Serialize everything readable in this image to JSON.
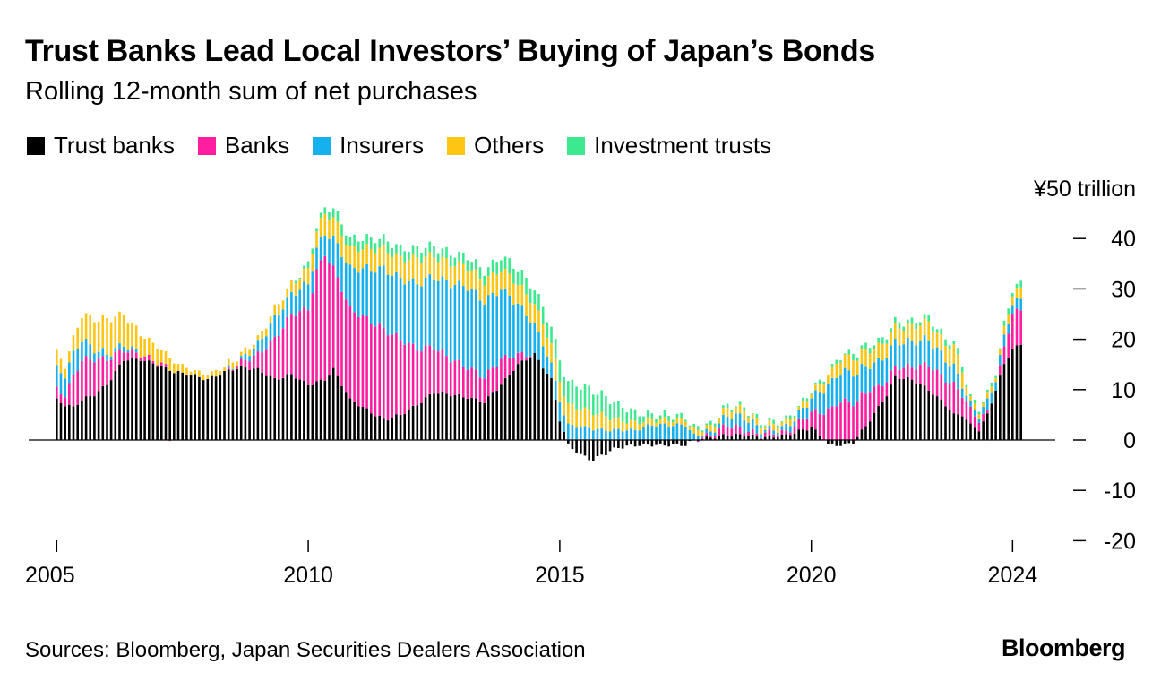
{
  "title": "Trust Banks Lead Local Investors’ Buying of Japan’s Bonds",
  "subtitle": "Rolling 12-month sum of net purchases",
  "source": "Sources: Bloomberg, Japan Securities Dealers Association",
  "brand": "Bloomberg",
  "colors": {
    "trust_banks": "#000000",
    "banks": "#ff1ea0",
    "insurers": "#17b0ee",
    "others": "#ffc513",
    "investment_trusts": "#3ce98e"
  },
  "chart_data": {
    "type": "bar",
    "stacked": true,
    "title": "Trust Banks Lead Local Investors’ Buying of Japan’s Bonds",
    "subtitle": "Rolling 12-month sum of net purchases",
    "ylabel": "¥50 trillion",
    "unit_label": "¥50 trillion",
    "ylim": [
      -20,
      50
    ],
    "yticks": [
      40,
      30,
      20,
      10,
      0,
      -10,
      -20
    ],
    "xlabels": [
      "2005",
      "2010",
      "2015",
      "2020",
      "2024"
    ],
    "xtick_index": [
      0,
      60,
      120,
      180,
      228
    ],
    "x_start": "2005-01",
    "x_end": "2024-01",
    "series_names": [
      "Trust banks",
      "Banks",
      "Insurers",
      "Others",
      "Investment trusts"
    ],
    "series": [
      {
        "name": "Trust banks",
        "key": "trust_banks",
        "anchors": [
          [
            0,
            8
          ],
          [
            2,
            7
          ],
          [
            4,
            6.5
          ],
          [
            6,
            8
          ],
          [
            9,
            9
          ],
          [
            12,
            11
          ],
          [
            16,
            16
          ],
          [
            20,
            16
          ],
          [
            24,
            15
          ],
          [
            28,
            13.5
          ],
          [
            32,
            13
          ],
          [
            36,
            12
          ],
          [
            40,
            13.5
          ],
          [
            44,
            14.5
          ],
          [
            48,
            14
          ],
          [
            52,
            12
          ],
          [
            56,
            13
          ],
          [
            60,
            11
          ],
          [
            64,
            12
          ],
          [
            66,
            14
          ],
          [
            70,
            8
          ],
          [
            74,
            6
          ],
          [
            78,
            4
          ],
          [
            82,
            5
          ],
          [
            86,
            7
          ],
          [
            90,
            9.5
          ],
          [
            94,
            9
          ],
          [
            98,
            8.5
          ],
          [
            102,
            7.5
          ],
          [
            106,
            11
          ],
          [
            110,
            15
          ],
          [
            114,
            17
          ],
          [
            118,
            12
          ],
          [
            120,
            4
          ],
          [
            122,
            -1
          ],
          [
            125,
            -3
          ],
          [
            128,
            -4
          ],
          [
            130,
            -3
          ],
          [
            134,
            -1.5
          ],
          [
            138,
            -1
          ],
          [
            142,
            -1
          ],
          [
            146,
            -1
          ],
          [
            150,
            -1
          ],
          [
            152,
            0
          ],
          [
            156,
            0.5
          ],
          [
            160,
            1
          ],
          [
            164,
            1
          ],
          [
            168,
            0.5
          ],
          [
            170,
            0.5
          ],
          [
            174,
            1
          ],
          [
            178,
            2
          ],
          [
            180,
            2.5
          ],
          [
            182,
            1
          ],
          [
            184,
            -1
          ],
          [
            188,
            -1
          ],
          [
            190,
            -0.5
          ],
          [
            194,
            4
          ],
          [
            198,
            9
          ],
          [
            200,
            12.5
          ],
          [
            204,
            12
          ],
          [
            208,
            10
          ],
          [
            212,
            7
          ],
          [
            214,
            5
          ],
          [
            216,
            5
          ],
          [
            218,
            3
          ],
          [
            220,
            2
          ],
          [
            222,
            5
          ],
          [
            224,
            10
          ],
          [
            226,
            15
          ],
          [
            228,
            18
          ],
          [
            230,
            19
          ]
        ]
      },
      {
        "name": "Banks",
        "key": "banks",
        "anchors": [
          [
            0,
            2
          ],
          [
            2,
            2
          ],
          [
            4,
            6
          ],
          [
            6,
            8
          ],
          [
            9,
            7
          ],
          [
            12,
            5
          ],
          [
            16,
            2
          ],
          [
            20,
            1
          ],
          [
            24,
            0.5
          ],
          [
            28,
            0
          ],
          [
            32,
            0
          ],
          [
            36,
            0
          ],
          [
            40,
            0
          ],
          [
            44,
            1
          ],
          [
            48,
            3
          ],
          [
            52,
            8
          ],
          [
            56,
            12
          ],
          [
            60,
            15
          ],
          [
            62,
            22
          ],
          [
            64,
            25
          ],
          [
            66,
            20
          ],
          [
            70,
            18
          ],
          [
            74,
            18
          ],
          [
            78,
            18
          ],
          [
            82,
            15
          ],
          [
            86,
            11
          ],
          [
            90,
            9
          ],
          [
            94,
            7
          ],
          [
            98,
            6
          ],
          [
            102,
            5
          ],
          [
            106,
            5
          ],
          [
            110,
            2
          ],
          [
            114,
            0
          ],
          [
            118,
            0
          ],
          [
            122,
            0
          ],
          [
            130,
            0
          ],
          [
            140,
            0
          ],
          [
            152,
            0
          ],
          [
            156,
            0.5
          ],
          [
            160,
            2
          ],
          [
            164,
            1
          ],
          [
            168,
            0.5
          ],
          [
            170,
            1
          ],
          [
            174,
            0.5
          ],
          [
            178,
            2
          ],
          [
            180,
            3
          ],
          [
            184,
            6
          ],
          [
            188,
            8
          ],
          [
            190,
            7
          ],
          [
            192,
            7
          ],
          [
            194,
            6
          ],
          [
            196,
            4
          ],
          [
            198,
            3
          ],
          [
            200,
            2
          ],
          [
            204,
            2.5
          ],
          [
            208,
            5
          ],
          [
            212,
            5
          ],
          [
            214,
            6
          ],
          [
            216,
            4
          ],
          [
            218,
            3
          ],
          [
            220,
            2
          ],
          [
            222,
            0.5
          ],
          [
            224,
            0
          ],
          [
            228,
            7
          ],
          [
            230,
            7
          ]
        ]
      },
      {
        "name": "Insurers",
        "key": "insurers",
        "anchors": [
          [
            0,
            4
          ],
          [
            2,
            4
          ],
          [
            4,
            4.5
          ],
          [
            6,
            4
          ],
          [
            9,
            2
          ],
          [
            12,
            1
          ],
          [
            16,
            1
          ],
          [
            20,
            0
          ],
          [
            24,
            0
          ],
          [
            28,
            0
          ],
          [
            32,
            0
          ],
          [
            36,
            0
          ],
          [
            40,
            0
          ],
          [
            44,
            0.5
          ],
          [
            48,
            2
          ],
          [
            52,
            4
          ],
          [
            56,
            4
          ],
          [
            60,
            5
          ],
          [
            64,
            4
          ],
          [
            66,
            6
          ],
          [
            70,
            8
          ],
          [
            74,
            10
          ],
          [
            78,
            12
          ],
          [
            82,
            12
          ],
          [
            86,
            13
          ],
          [
            90,
            14
          ],
          [
            94,
            15
          ],
          [
            98,
            16
          ],
          [
            102,
            15
          ],
          [
            106,
            14
          ],
          [
            110,
            10
          ],
          [
            114,
            6
          ],
          [
            118,
            3
          ],
          [
            120,
            4
          ],
          [
            122,
            3
          ],
          [
            126,
            2.5
          ],
          [
            130,
            2
          ],
          [
            134,
            2
          ],
          [
            138,
            2
          ],
          [
            142,
            3
          ],
          [
            146,
            3
          ],
          [
            150,
            3
          ],
          [
            152,
            1
          ],
          [
            156,
            0.5
          ],
          [
            160,
            2
          ],
          [
            164,
            2.5
          ],
          [
            168,
            1
          ],
          [
            170,
            0.5
          ],
          [
            174,
            1
          ],
          [
            178,
            2
          ],
          [
            180,
            3
          ],
          [
            184,
            5
          ],
          [
            188,
            6
          ],
          [
            190,
            6
          ],
          [
            192,
            5.5
          ],
          [
            194,
            5
          ],
          [
            196,
            5
          ],
          [
            198,
            5
          ],
          [
            200,
            5
          ],
          [
            204,
            5
          ],
          [
            208,
            5
          ],
          [
            212,
            4
          ],
          [
            214,
            3.5
          ],
          [
            216,
            2
          ],
          [
            218,
            1
          ],
          [
            220,
            1
          ],
          [
            222,
            2
          ],
          [
            224,
            2
          ],
          [
            228,
            2
          ],
          [
            230,
            2
          ]
        ]
      },
      {
        "name": "Others",
        "key": "others",
        "anchors": [
          [
            0,
            3
          ],
          [
            2,
            2
          ],
          [
            4,
            3
          ],
          [
            6,
            5
          ],
          [
            9,
            6
          ],
          [
            12,
            7
          ],
          [
            16,
            6
          ],
          [
            20,
            4
          ],
          [
            24,
            3
          ],
          [
            28,
            2
          ],
          [
            32,
            1
          ],
          [
            36,
            1
          ],
          [
            40,
            1
          ],
          [
            44,
            1
          ],
          [
            48,
            1
          ],
          [
            52,
            2
          ],
          [
            56,
            2
          ],
          [
            60,
            3
          ],
          [
            64,
            4
          ],
          [
            66,
            4
          ],
          [
            70,
            4
          ],
          [
            74,
            4
          ],
          [
            78,
            4
          ],
          [
            82,
            4
          ],
          [
            86,
            5
          ],
          [
            90,
            4
          ],
          [
            94,
            4
          ],
          [
            98,
            4
          ],
          [
            102,
            4
          ],
          [
            106,
            4
          ],
          [
            110,
            4
          ],
          [
            114,
            4
          ],
          [
            118,
            4
          ],
          [
            122,
            4
          ],
          [
            126,
            3.5
          ],
          [
            130,
            3
          ],
          [
            134,
            2
          ],
          [
            138,
            1.5
          ],
          [
            142,
            1
          ],
          [
            146,
            1
          ],
          [
            150,
            1
          ],
          [
            152,
            1
          ],
          [
            156,
            1
          ],
          [
            160,
            1.5
          ],
          [
            164,
            1.5
          ],
          [
            168,
            1
          ],
          [
            170,
            1
          ],
          [
            174,
            1
          ],
          [
            178,
            1
          ],
          [
            180,
            1
          ],
          [
            184,
            2
          ],
          [
            188,
            3
          ],
          [
            190,
            3
          ],
          [
            192,
            3
          ],
          [
            194,
            3
          ],
          [
            196,
            3
          ],
          [
            198,
            3
          ],
          [
            200,
            3
          ],
          [
            204,
            3
          ],
          [
            208,
            3.5
          ],
          [
            212,
            3
          ],
          [
            214,
            4
          ],
          [
            216,
            3
          ],
          [
            218,
            1
          ],
          [
            220,
            1
          ],
          [
            222,
            1
          ],
          [
            224,
            1
          ],
          [
            228,
            2
          ],
          [
            230,
            2
          ]
        ]
      },
      {
        "name": "Investment trusts",
        "key": "investment_trusts",
        "anchors": [
          [
            0,
            0
          ],
          [
            10,
            0
          ],
          [
            20,
            0
          ],
          [
            30,
            0
          ],
          [
            40,
            0
          ],
          [
            50,
            0
          ],
          [
            56,
            0
          ],
          [
            60,
            1
          ],
          [
            64,
            1
          ],
          [
            66,
            2
          ],
          [
            70,
            2
          ],
          [
            74,
            2
          ],
          [
            78,
            2
          ],
          [
            82,
            2
          ],
          [
            86,
            2
          ],
          [
            90,
            2
          ],
          [
            94,
            2
          ],
          [
            98,
            2
          ],
          [
            102,
            2
          ],
          [
            106,
            2.5
          ],
          [
            110,
            3
          ],
          [
            114,
            3
          ],
          [
            118,
            3.5
          ],
          [
            120,
            4
          ],
          [
            122,
            4.5
          ],
          [
            126,
            4.5
          ],
          [
            130,
            4
          ],
          [
            134,
            3
          ],
          [
            138,
            2
          ],
          [
            142,
            1
          ],
          [
            146,
            1
          ],
          [
            150,
            0.5
          ],
          [
            152,
            0.5
          ],
          [
            160,
            0.5
          ],
          [
            170,
            0.5
          ],
          [
            180,
            0.5
          ],
          [
            188,
            0.5
          ],
          [
            190,
            1
          ],
          [
            194,
            1
          ],
          [
            196,
            1
          ],
          [
            200,
            1
          ],
          [
            204,
            1
          ],
          [
            208,
            1
          ],
          [
            212,
            1
          ],
          [
            216,
            1
          ],
          [
            218,
            0.5
          ],
          [
            220,
            0.5
          ],
          [
            224,
            0.5
          ],
          [
            228,
            1
          ],
          [
            230,
            1
          ]
        ]
      }
    ]
  }
}
